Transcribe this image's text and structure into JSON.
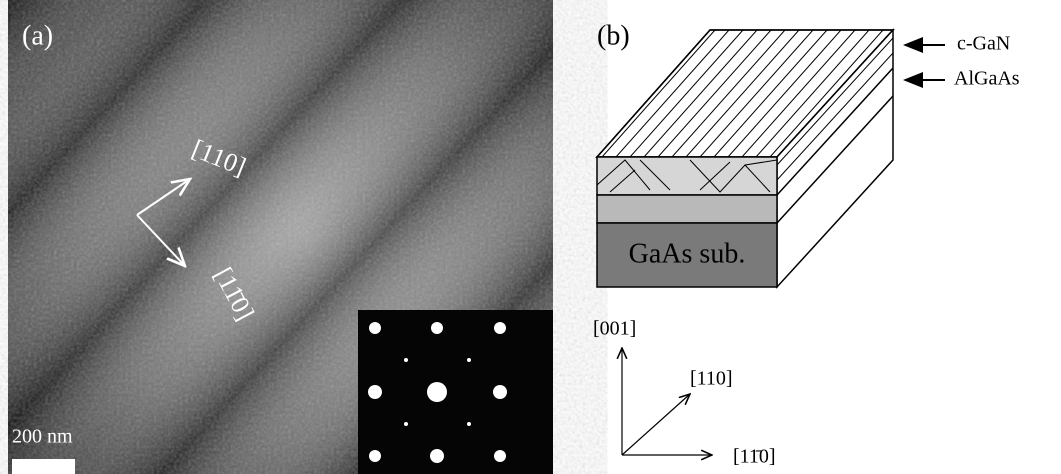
{
  "panel_a": {
    "label": "(a)",
    "direction_up": "[110]",
    "direction_down": "[11̄0]",
    "scale_bar": "200 nm"
  },
  "panel_b": {
    "label": "(b)",
    "layers": [
      "c-GaN",
      "AlGaAs",
      "GaAs sub."
    ],
    "axes": [
      "[001]",
      "[110]",
      "[11̄0]"
    ]
  }
}
